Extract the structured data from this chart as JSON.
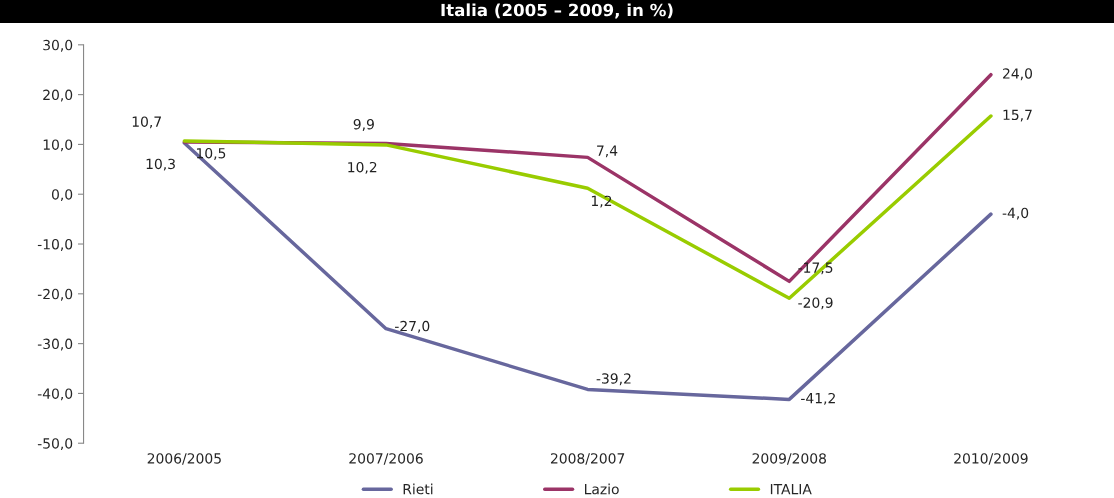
{
  "chart_data": {
    "type": "line",
    "title": "Italia (2005 – 2009, in %)",
    "categories": [
      "2006/2005",
      "2007/2006",
      "2008/2007",
      "2009/2008",
      "2010/2009"
    ],
    "series": [
      {
        "name": "Rieti",
        "color": "#67679d",
        "values": [
          10.3,
          -27.0,
          -39.2,
          -41.2,
          -4.0
        ],
        "value_labels": [
          "10,3",
          "-27,0",
          "-39,2",
          "-41,2",
          "-4,0"
        ]
      },
      {
        "name": "Lazio",
        "color": "#9b3467",
        "values": [
          10.5,
          10.2,
          7.4,
          -17.5,
          24.0
        ],
        "value_labels": [
          "10,5",
          "10,2",
          "7,4",
          "-17,5",
          "24,0"
        ]
      },
      {
        "name": "ITALIA",
        "color": "#99cc00",
        "values": [
          10.7,
          9.9,
          1.2,
          -20.9,
          15.7
        ],
        "value_labels": [
          "10,7",
          "9,9",
          "1,2",
          "-20,9",
          "15,7"
        ]
      }
    ],
    "ylim": [
      -50,
      30
    ],
    "yticks": [
      {
        "value": -50,
        "label": "-50,0"
      },
      {
        "value": -40,
        "label": "-40,0"
      },
      {
        "value": -30,
        "label": "-30,0"
      },
      {
        "value": -20,
        "label": "-20,0"
      },
      {
        "value": -10,
        "label": "-10,0"
      },
      {
        "value": 0,
        "label": "0,0"
      },
      {
        "value": 10,
        "label": "10,0"
      },
      {
        "value": 20,
        "label": "20,0"
      },
      {
        "value": 30,
        "label": "30,0"
      }
    ],
    "grid": false,
    "legend": "bottom",
    "line_style": "solid"
  }
}
